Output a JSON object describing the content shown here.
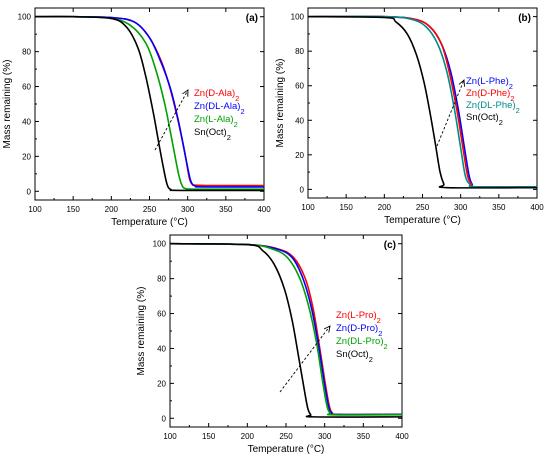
{
  "chart_data": [
    {
      "type": "line",
      "panel_label": "(a)",
      "xlabel": "Temperature (°C)",
      "ylabel": "Mass remaining (%)",
      "xlim": [
        100,
        400
      ],
      "ylim": [
        -5,
        105
      ],
      "xticks": [
        100,
        150,
        200,
        250,
        300,
        350,
        400
      ],
      "yticks": [
        0,
        20,
        40,
        60,
        80,
        100
      ],
      "legend_placement": "inside, right of arrow",
      "series": [
        {
          "name": "Zn(D-Ala)2",
          "color": "#ff0000",
          "x": [
            100,
            150,
            200,
            230,
            250,
            265,
            275,
            285,
            295,
            302,
            306,
            310,
            330,
            400
          ],
          "y": [
            100,
            100,
            99.5,
            97,
            88,
            75,
            62,
            45,
            25,
            8,
            4,
            3.5,
            3.3,
            3.3
          ]
        },
        {
          "name": "Zn(DL-Ala)2",
          "color": "#0000ff",
          "x": [
            100,
            150,
            200,
            230,
            250,
            265,
            278,
            288,
            298,
            304,
            310,
            320,
            400
          ],
          "y": [
            100,
            100,
            99.5,
            97,
            88,
            74,
            58,
            40,
            18,
            6,
            3,
            2.5,
            2.5
          ]
        },
        {
          "name": "Zn(L-Ala)2",
          "color": "#00a000",
          "x": [
            100,
            150,
            200,
            225,
            245,
            258,
            270,
            280,
            288,
            293,
            298,
            310,
            400
          ],
          "y": [
            100,
            100,
            99,
            95,
            85,
            70,
            50,
            28,
            10,
            3,
            1.5,
            1.2,
            1.2
          ]
        },
        {
          "name": "Sn(Oct)2",
          "color": "#000000",
          "x": [
            100,
            150,
            200,
            220,
            235,
            245,
            255,
            262,
            268,
            273,
            278,
            290,
            400
          ],
          "y": [
            100,
            100,
            99,
            94,
            82,
            66,
            45,
            28,
            14,
            4,
            1,
            0.5,
            0.5
          ]
        }
      ],
      "annotation": "dashed arrow indicating increasing degradation temperature"
    },
    {
      "type": "line",
      "panel_label": "(b)",
      "xlabel": "Temperature (°C)",
      "ylabel": "Mass remaining (%)",
      "xlim": [
        100,
        400
      ],
      "ylim": [
        -5,
        105
      ],
      "xticks": [
        100,
        150,
        200,
        250,
        300,
        350,
        400
      ],
      "yticks": [
        0,
        20,
        40,
        60,
        80,
        100
      ],
      "legend_placement": "inside, right of arrow",
      "series": [
        {
          "name": "Zn(L-Phe)2",
          "color": "#0000ff",
          "x": [
            100,
            200,
            240,
            260,
            275,
            287,
            297,
            305,
            311,
            315,
            320,
            400
          ],
          "y": [
            100,
            100,
            98.5,
            94,
            84,
            68,
            46,
            24,
            8,
            3,
            1.5,
            1.5
          ]
        },
        {
          "name": "Zn(D-Phe)2",
          "color": "#ff0000",
          "x": [
            100,
            200,
            240,
            260,
            275,
            285,
            295,
            303,
            309,
            314,
            320,
            400
          ],
          "y": [
            100,
            100,
            98.5,
            94,
            84,
            68,
            46,
            24,
            8,
            3,
            1.5,
            1.5
          ]
        },
        {
          "name": "Zn(DL-Phe)2",
          "color": "#008b8b",
          "x": [
            100,
            200,
            235,
            255,
            270,
            282,
            292,
            300,
            306,
            312,
            320,
            400
          ],
          "y": [
            100,
            100,
            98.5,
            94,
            84,
            68,
            46,
            24,
            8,
            3,
            1.5,
            1.5
          ]
        },
        {
          "name": "Sn(Oct)2",
          "color": "#000000",
          "x": [
            100,
            200,
            215,
            230,
            242,
            252,
            260,
            267,
            273,
            278,
            282,
            400
          ],
          "y": [
            100,
            99.5,
            97,
            90,
            78,
            62,
            44,
            26,
            10,
            3,
            1,
            1
          ]
        }
      ],
      "annotation": "dashed arrow indicating increasing degradation temperature"
    },
    {
      "type": "line",
      "panel_label": "(c)",
      "xlabel": "Temperature (°C)",
      "ylabel": "Mass remaining (%)",
      "xlim": [
        100,
        400
      ],
      "ylim": [
        -5,
        105
      ],
      "xticks": [
        100,
        150,
        200,
        250,
        300,
        350,
        400
      ],
      "yticks": [
        0,
        20,
        40,
        60,
        80,
        100
      ],
      "legend_placement": "inside, right of arrow",
      "series": [
        {
          "name": "Zn(L-Pro)2",
          "color": "#ff0000",
          "x": [
            100,
            200,
            240,
            260,
            275,
            285,
            293,
            300,
            306,
            310,
            315,
            400
          ],
          "y": [
            100,
            99.5,
            97,
            92,
            80,
            63,
            42,
            22,
            7,
            3,
            2.2,
            2.2
          ]
        },
        {
          "name": "Zn(D-Pro)2",
          "color": "#0000ff",
          "x": [
            100,
            200,
            238,
            258,
            272,
            283,
            292,
            299,
            305,
            309,
            315,
            400
          ],
          "y": [
            100,
            99.5,
            97,
            92,
            80,
            63,
            42,
            22,
            7,
            3,
            2.2,
            2.2
          ]
        },
        {
          "name": "Zn(DL-Pro)2",
          "color": "#00a000",
          "x": [
            100,
            200,
            232,
            252,
            268,
            280,
            290,
            297,
            303,
            307,
            312,
            400
          ],
          "y": [
            100,
            99.5,
            97,
            92,
            80,
            63,
            42,
            22,
            7,
            3,
            2,
            2
          ]
        },
        {
          "name": "Sn(Oct)2",
          "color": "#000000",
          "x": [
            100,
            200,
            220,
            235,
            248,
            258,
            266,
            273,
            278,
            282,
            286,
            400
          ],
          "y": [
            100,
            99.5,
            96,
            88,
            74,
            56,
            36,
            18,
            6,
            2,
            0.8,
            0.8
          ]
        }
      ],
      "annotation": "dashed arrow indicating increasing degradation temperature"
    }
  ]
}
